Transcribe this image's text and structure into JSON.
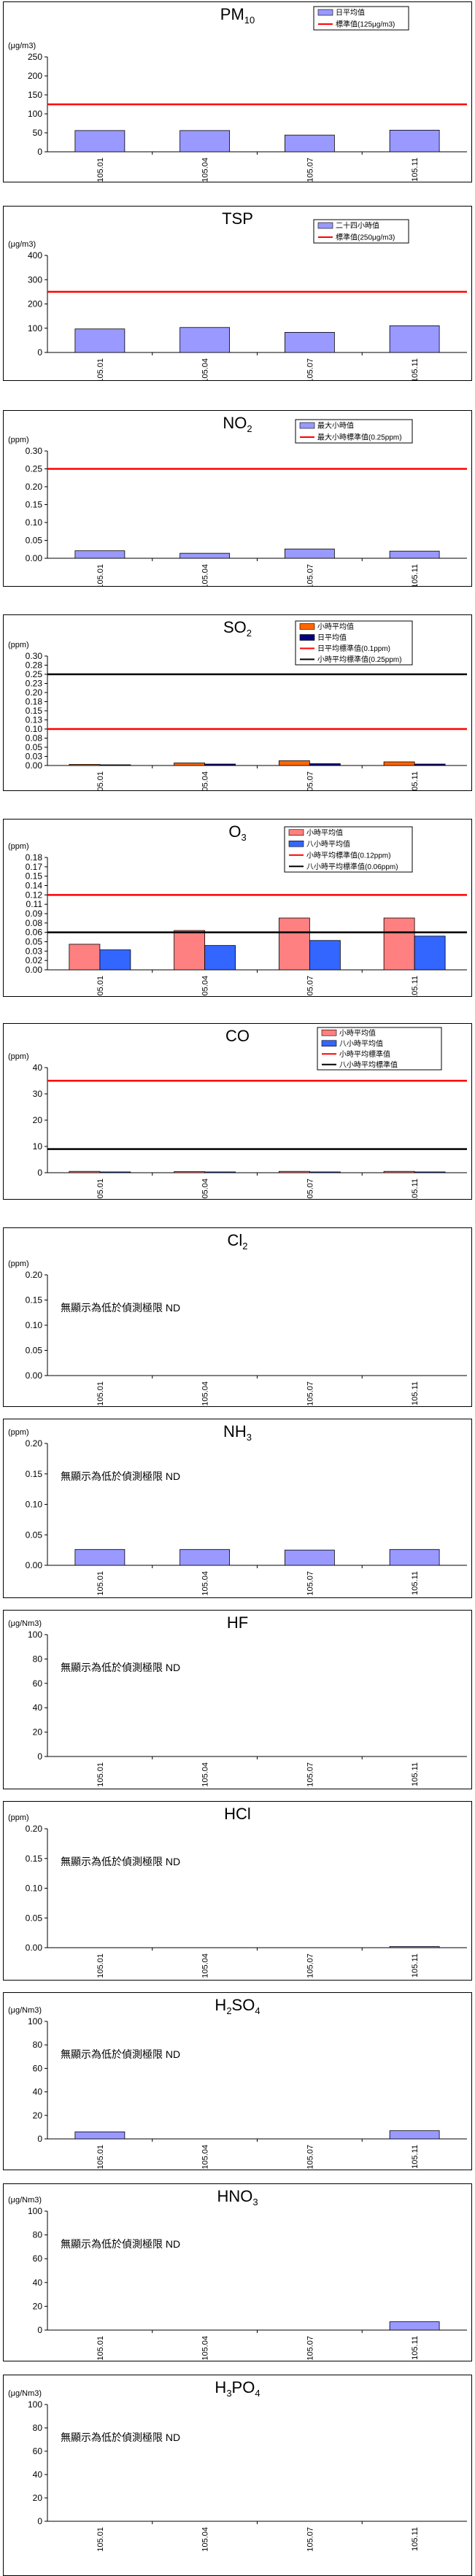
{
  "categories": [
    "105.01",
    "105.04",
    "105.07",
    "105.11"
  ],
  "colors": {
    "blue_bar": "#9999ff",
    "orange_bar": "#ff6600",
    "navy_bar": "#000080",
    "pink_bar": "#ff8080",
    "royal_bar": "#3366ff",
    "red_line": "#ff0000",
    "black_line": "#000000"
  },
  "chart_data": [
    {
      "id": "pm10",
      "title": "PM",
      "title_sub": "10",
      "unit": "(μg/m3)",
      "type": "bar",
      "ylim": [
        0,
        250
      ],
      "yticks": [
        "0",
        "50",
        "100",
        "150",
        "200",
        "250"
      ],
      "series": [
        {
          "name": "日平均值",
          "values": [
            56,
            56,
            44,
            57
          ],
          "color": "#9999ff"
        }
      ],
      "lines": [
        {
          "name": "標準值(125μg/m3)",
          "value": 125,
          "color": "#ff0000"
        }
      ],
      "note": ""
    },
    {
      "id": "tsp",
      "title": "TSP",
      "title_sub": "",
      "unit": "(μg/m3)",
      "type": "bar",
      "ylim": [
        0,
        400
      ],
      "yticks": [
        "0",
        "100",
        "200",
        "300",
        "400"
      ],
      "series": [
        {
          "name": "二十四小時值",
          "values": [
            97,
            103,
            83,
            110
          ],
          "color": "#9999ff"
        }
      ],
      "lines": [
        {
          "name": "標準值(250μg/m3)",
          "value": 250,
          "color": "#ff0000"
        }
      ],
      "note": ""
    },
    {
      "id": "no2",
      "title": "NO",
      "title_sub": "2",
      "unit": "(ppm)",
      "type": "bar",
      "ylim": [
        0,
        0.3
      ],
      "yticks": [
        "0.00",
        "0.05",
        "0.10",
        "0.15",
        "0.20",
        "0.25",
        "0.30"
      ],
      "series": [
        {
          "name": "最大小時值",
          "values": [
            0.021,
            0.014,
            0.026,
            0.02
          ],
          "color": "#9999ff"
        }
      ],
      "lines": [
        {
          "name": "最大小時標準值(0.25ppm)",
          "value": 0.25,
          "color": "#ff0000"
        }
      ],
      "note": ""
    },
    {
      "id": "so2",
      "title": "SO",
      "title_sub": "2",
      "unit": "(ppm)",
      "type": "bar",
      "ylim": [
        0,
        0.3
      ],
      "yticks": [
        "0.00",
        "0.03",
        "0.05",
        "0.08",
        "0.10",
        "0.13",
        "0.15",
        "0.18",
        "0.20",
        "0.23",
        "0.25",
        "0.28",
        "0.30"
      ],
      "series": [
        {
          "name": "小時平均值",
          "values": [
            0.003,
            0.007,
            0.013,
            0.01
          ],
          "color": "#ff6600"
        },
        {
          "name": "日平均值",
          "values": [
            0.002,
            0.004,
            0.005,
            0.004
          ],
          "color": "#000080"
        }
      ],
      "lines": [
        {
          "name": "日平均標準值(0.1ppm)",
          "value": 0.1,
          "color": "#ff0000"
        },
        {
          "name": "小時平均標準值(0.25ppm)",
          "value": 0.25,
          "color": "#000000"
        }
      ],
      "note": ""
    },
    {
      "id": "o3",
      "title": "O",
      "title_sub": "3",
      "unit": "(ppm)",
      "type": "bar",
      "ylim": [
        0,
        0.18
      ],
      "yticks": [
        "0.00",
        "0.02",
        "0.03",
        "0.05",
        "0.06",
        "0.08",
        "0.09",
        "0.11",
        "0.12",
        "0.14",
        "0.15",
        "0.17",
        "0.18"
      ],
      "series": [
        {
          "name": "小時平均值",
          "values": [
            0.041,
            0.063,
            0.083,
            0.083
          ],
          "color": "#ff8080"
        },
        {
          "name": "八小時平均值",
          "values": [
            0.032,
            0.039,
            0.047,
            0.054
          ],
          "color": "#3366ff"
        }
      ],
      "lines": [
        {
          "name": "小時平均標準值(0.12ppm)",
          "value": 0.12,
          "color": "#ff0000"
        },
        {
          "name": "八小時平均標準值(0.06ppm)",
          "value": 0.06,
          "color": "#000000"
        }
      ],
      "note": ""
    },
    {
      "id": "co",
      "title": "CO",
      "title_sub": "",
      "unit": "(ppm)",
      "type": "bar",
      "ylim": [
        0,
        40
      ],
      "yticks": [
        "0",
        "10",
        "20",
        "30",
        "40"
      ],
      "series": [
        {
          "name": "小時平均值",
          "values": [
            0.5,
            0.4,
            0.5,
            0.5
          ],
          "color": "#ff8080"
        },
        {
          "name": "八小時平均值",
          "values": [
            0.3,
            0.3,
            0.3,
            0.3
          ],
          "color": "#3366ff"
        }
      ],
      "lines": [
        {
          "name": "小時平均標準值",
          "value": 35,
          "color": "#ff0000"
        },
        {
          "name": "八小時平均標準值",
          "value": 9,
          "color": "#000000"
        }
      ],
      "note": ""
    },
    {
      "id": "cl2",
      "title": "Cl",
      "title_sub": "2",
      "unit": "(ppm)",
      "type": "bar",
      "ylim": [
        0,
        0.2
      ],
      "yticks": [
        "0.00",
        "0.05",
        "0.10",
        "0.15",
        "0.20"
      ],
      "series": [
        {
          "name": "",
          "values": [
            0,
            0,
            0,
            0
          ],
          "color": "#9999ff"
        }
      ],
      "lines": [],
      "note": "無顯示為低於偵測極限 ND"
    },
    {
      "id": "nh3",
      "title": "NH",
      "title_sub": "3",
      "unit": "(ppm)",
      "type": "bar",
      "ylim": [
        0,
        0.2
      ],
      "yticks": [
        "0.00",
        "0.05",
        "0.10",
        "0.15",
        "0.20"
      ],
      "series": [
        {
          "name": "",
          "values": [
            0.026,
            0.026,
            0.025,
            0.026
          ],
          "color": "#9999ff"
        }
      ],
      "lines": [],
      "note": "無顯示為低於偵測極限 ND"
    },
    {
      "id": "hf",
      "title": "HF",
      "title_sub": "",
      "unit": "(μg/Nm3)",
      "type": "bar",
      "ylim": [
        0,
        100
      ],
      "yticks": [
        "0",
        "20",
        "40",
        "60",
        "80",
        "100"
      ],
      "series": [
        {
          "name": "",
          "values": [
            0,
            0,
            0,
            0
          ],
          "color": "#9999ff"
        }
      ],
      "lines": [],
      "note": "無顯示為低於偵測極限 ND"
    },
    {
      "id": "hcl",
      "title": "HCl",
      "title_sub": "",
      "unit": "(ppm)",
      "type": "bar",
      "ylim": [
        0,
        0.2
      ],
      "yticks": [
        "0.00",
        "0.05",
        "0.10",
        "0.15",
        "0.20"
      ],
      "series": [
        {
          "name": "",
          "values": [
            0,
            0,
            0,
            0.002
          ],
          "color": "#9999ff"
        }
      ],
      "lines": [],
      "note": "無顯示為低於偵測極限 ND"
    },
    {
      "id": "h2so4",
      "title": "H",
      "title_sub": "2",
      "title_rest": "SO",
      "title_sub2": "4",
      "unit": "(μg/Nm3)",
      "type": "bar",
      "ylim": [
        0,
        100
      ],
      "yticks": [
        "0",
        "20",
        "40",
        "60",
        "80",
        "100"
      ],
      "series": [
        {
          "name": "",
          "values": [
            6,
            0,
            0,
            7
          ],
          "color": "#9999ff"
        }
      ],
      "lines": [],
      "note": "無顯示為低於偵測極限 ND"
    },
    {
      "id": "hno3",
      "title": "HNO",
      "title_sub": "3",
      "unit": "(μg/Nm3)",
      "type": "bar",
      "ylim": [
        0,
        100
      ],
      "yticks": [
        "0",
        "20",
        "40",
        "60",
        "80",
        "100"
      ],
      "series": [
        {
          "name": "",
          "values": [
            0,
            0,
            0,
            7
          ],
          "color": "#9999ff"
        }
      ],
      "lines": [],
      "note": "無顯示為低於偵測極限 ND"
    },
    {
      "id": "h3po4",
      "title": "H",
      "title_sub": "3",
      "title_rest": "PO",
      "title_sub2": "4",
      "unit": "(μg/Nm3)",
      "type": "bar",
      "ylim": [
        0,
        100
      ],
      "yticks": [
        "0",
        "20",
        "40",
        "60",
        "80",
        "100"
      ],
      "series": [
        {
          "name": "",
          "values": [
            0,
            0,
            0,
            0
          ],
          "color": "#9999ff"
        }
      ],
      "lines": [],
      "note": "無顯示為低於偵測極限 ND"
    }
  ]
}
